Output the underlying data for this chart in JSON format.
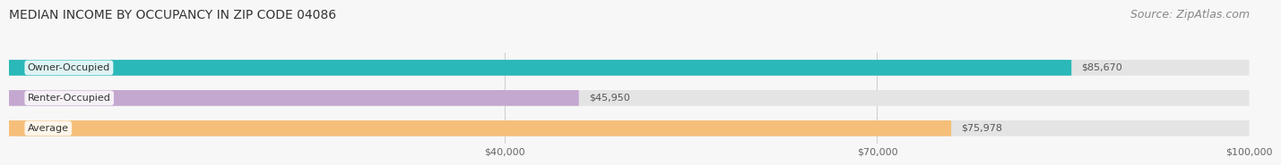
{
  "title": "MEDIAN INCOME BY OCCUPANCY IN ZIP CODE 04086",
  "source": "Source: ZipAtlas.com",
  "categories": [
    "Owner-Occupied",
    "Renter-Occupied",
    "Average"
  ],
  "values": [
    85670,
    45950,
    75978
  ],
  "bar_colors": [
    "#2ab8b8",
    "#c4a8d0",
    "#f5bf7a"
  ],
  "bar_labels": [
    "$85,670",
    "$45,950",
    "$75,978"
  ],
  "xlim_max": 100000,
  "xticks": [
    40000,
    70000,
    100000
  ],
  "xtick_labels": [
    "$40,000",
    "$70,000",
    "$100,000"
  ],
  "background_color": "#f7f7f7",
  "bar_bg_color": "#e4e4e4",
  "title_fontsize": 10,
  "source_fontsize": 9,
  "label_fontsize": 8,
  "tick_fontsize": 8
}
